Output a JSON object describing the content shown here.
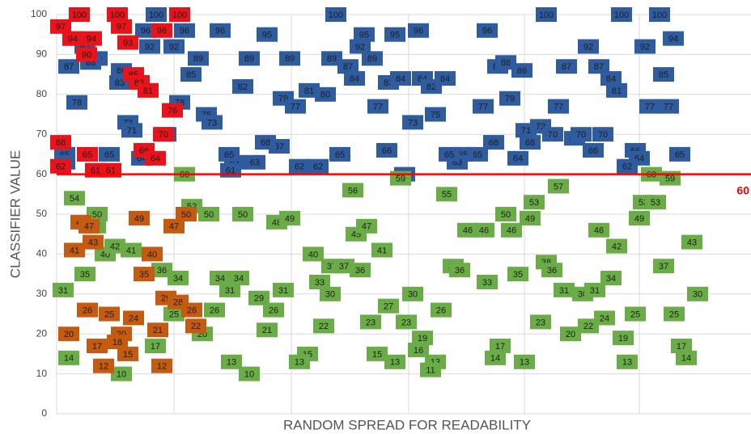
{
  "chart_data": {
    "type": "scatter",
    "y_label": "CLASSIFIER VALUE",
    "x_label": "RANDOM SPREAD FOR READABILITY",
    "xlim": [
      0,
      858
    ],
    "ylim": [
      0,
      100
    ],
    "yticks": [
      0,
      10,
      20,
      30,
      40,
      50,
      60,
      70,
      80,
      90,
      100
    ],
    "grid": true,
    "threshold": 60,
    "threshold_color": "#ff0000",
    "series": [
      {
        "color": "#2f5b9f",
        "x": [
          20,
          35,
          50,
          15,
          42,
          80,
          78,
          110,
          123,
          115,
          145,
          158,
          175,
          166,
          202,
          230,
          238,
          260,
          288,
          280,
          295,
          312,
          332,
          340,
          360,
          368,
          375,
          380,
          390,
          345,
          418,
          410,
          425,
          447,
          452,
          463,
          480,
          397,
          440,
          468,
          408,
          527,
          532,
          545,
          555,
          575,
          560,
          605,
          630,
          620,
          598,
          585,
          580,
          613,
          640,
          648,
          657,
          670,
          685,
          692,
          675,
          663,
          698,
          727,
          745,
          750,
          762,
          733,
          756,
          715,
          720,
          705,
          770,
          570,
          540,
          520,
          502,
          495,
          485,
          350,
          300,
          323,
          275,
          258,
          245,
          220,
          213,
          215,
          185,
          192,
          152,
          88,
          93,
          105,
          135,
          65,
          25,
          10,
          10,
          430
        ],
        "values": [
          94,
          92,
          89,
          87,
          88,
          86,
          83,
          96,
          100,
          92,
          92,
          96,
          89,
          85,
          96,
          82,
          89,
          95,
          89,
          79,
          77,
          81,
          80,
          89,
          87,
          84,
          92,
          95,
          89,
          100,
          95,
          83,
          84,
          96,
          84,
          82,
          84,
          77,
          73,
          75,
          66,
          77,
          96,
          87,
          88,
          86,
          79,
          100,
          87,
          77,
          72,
          68,
          71,
          70,
          69,
          70,
          92,
          87,
          84,
          81,
          70,
          66,
          100,
          92,
          100,
          85,
          94,
          77,
          77,
          66,
          64,
          62,
          65,
          64,
          68,
          65,
          65,
          63,
          65,
          65,
          62,
          62,
          67,
          68,
          63,
          63,
          65,
          61,
          75,
          73,
          78,
          73,
          71,
          64,
          70,
          65,
          78,
          65,
          63,
          60
        ]
      },
      {
        "color": "#e8131b",
        "x": [
          5,
          28,
          75,
          152,
          20,
          43,
          80,
          88,
          130,
          37,
          95,
          102,
          113,
          143,
          132,
          108,
          122,
          5,
          38,
          5,
          48,
          67
        ],
        "values": [
          97,
          100,
          100,
          100,
          94,
          94,
          97,
          93,
          96,
          90,
          85,
          83,
          81,
          76,
          70,
          66,
          64,
          68,
          65,
          62,
          61,
          61
        ]
      },
      {
        "color": "#6aac46",
        "x": [
          22,
          50,
          48,
          60,
          72,
          92,
          130,
          150,
          35,
          8,
          167,
          188,
          230,
          158,
          272,
          288,
          317,
          340,
          355,
          370,
          383,
          375,
          366,
          402,
          425,
          325,
          338,
          440,
          410,
          388,
          432,
          475,
          452,
          447,
          468,
          462,
          396,
          418,
          310,
          300,
          330,
          260,
          268,
          280,
          250,
          214,
          202,
          225,
          195,
          180,
          145,
          122,
          80,
          15,
          216,
          238,
          482,
          490,
          498,
          508,
          528,
          532,
          555,
          562,
          570,
          585,
          590,
          620,
          605,
          612,
          598,
          627,
          635,
          650,
          657,
          665,
          677,
          685,
          670,
          692,
          700,
          715,
          705,
          720,
          725,
          740,
          735,
          758,
          750,
          763,
          785,
          792,
          772,
          778,
          542,
          548,
          578
        ],
        "values": [
          54,
          50,
          47,
          40,
          42,
          41,
          36,
          34,
          35,
          31,
          52,
          50,
          50,
          60,
          48,
          49,
          40,
          37,
          37,
          45,
          47,
          36,
          56,
          41,
          59,
          33,
          30,
          30,
          27,
          23,
          23,
          26,
          19,
          16,
          13,
          11,
          15,
          13,
          15,
          13,
          22,
          21,
          26,
          31,
          29,
          31,
          34,
          34,
          26,
          20,
          25,
          17,
          10,
          14,
          13,
          10,
          55,
          37,
          36,
          46,
          46,
          33,
          50,
          46,
          35,
          49,
          53,
          57,
          38,
          36,
          23,
          31,
          20,
          30,
          22,
          31,
          24,
          34,
          46,
          42,
          19,
          25,
          13,
          49,
          53,
          53,
          60,
          59,
          37,
          25,
          43,
          30,
          17,
          14,
          14,
          17,
          13
        ]
      },
      {
        "color": "#c55a11",
        "x": [
          30,
          45,
          22,
          40,
          102,
          118,
          108,
          145,
          160,
          15,
          50,
          80,
          75,
          88,
          58,
          130,
          95,
          125,
          135,
          150,
          167,
          172,
          65,
          38
        ],
        "values": [
          48,
          43,
          41,
          47,
          49,
          40,
          35,
          47,
          50,
          20,
          17,
          20,
          18,
          15,
          12,
          12,
          24,
          21,
          29,
          28,
          26,
          22,
          25,
          26
        ]
      }
    ]
  }
}
